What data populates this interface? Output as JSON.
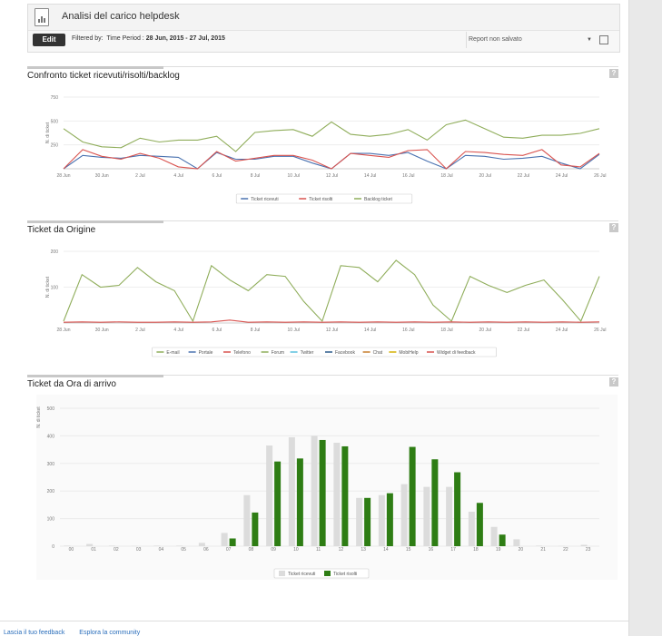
{
  "header": {
    "title": "Analisi del carico helpdesk",
    "edit_label": "Edit",
    "filter_prefix": "Filtered by:",
    "filter_field": "Time Period :",
    "filter_value": "28 Jun, 2015 - 27 Jul, 2015",
    "report_select": "Report non salvato"
  },
  "footer": {
    "feedback": "Lascia il tuo feedback",
    "community": "Esplora la community"
  },
  "colors": {
    "blue": "#4a72b0",
    "red": "#d9534f",
    "green": "#8fad5a",
    "gray_bar": "#dcdcdc",
    "dark_green": "#2e7d14"
  },
  "chart_data": [
    {
      "type": "line",
      "title": "Confronto ticket ricevuti/risolti/backlog",
      "ylabel": "N. di ticket",
      "ylim": [
        0,
        750
      ],
      "yticks": [
        250,
        500,
        750
      ],
      "x_ticks": [
        "28 Jun",
        "30 Jun",
        "2 Jul",
        "4 Jul",
        "6 Jul",
        "8 Jul",
        "10 Jul",
        "12 Jul",
        "14 Jul",
        "16 Jul",
        "18 Jul",
        "20 Jul",
        "22 Jul",
        "24 Jul",
        "26 Jul"
      ],
      "legend": [
        "Ticket ricevuti",
        "Ticket risolti",
        "Backlog ticket"
      ],
      "series": [
        {
          "name": "Ticket ricevuti",
          "color": "#4a72b0",
          "values": [
            0,
            140,
            120,
            110,
            140,
            130,
            120,
            0,
            170,
            100,
            100,
            130,
            130,
            60,
            0,
            160,
            160,
            140,
            170,
            80,
            0,
            140,
            130,
            100,
            110,
            130,
            60,
            0,
            150
          ]
        },
        {
          "name": "Ticket risolti",
          "color": "#d9534f",
          "values": [
            0,
            200,
            130,
            100,
            160,
            110,
            20,
            0,
            180,
            80,
            110,
            140,
            140,
            90,
            0,
            160,
            140,
            120,
            190,
            200,
            0,
            180,
            170,
            150,
            140,
            200,
            40,
            20,
            160
          ]
        },
        {
          "name": "Backlog ticket",
          "color": "#8fad5a",
          "values": [
            420,
            280,
            230,
            220,
            320,
            280,
            300,
            300,
            340,
            180,
            380,
            400,
            410,
            340,
            490,
            360,
            340,
            360,
            410,
            300,
            460,
            510,
            420,
            330,
            320,
            350,
            350,
            370,
            420
          ]
        }
      ]
    },
    {
      "type": "line",
      "title": "Ticket da Origine",
      "ylabel": "N. di ticket",
      "ylim": [
        0,
        200
      ],
      "yticks": [
        100,
        200
      ],
      "x_ticks": [
        "28 Jun",
        "30 Jun",
        "2 Jul",
        "4 Jul",
        "6 Jul",
        "8 Jul",
        "10 Jul",
        "12 Jul",
        "14 Jul",
        "16 Jul",
        "18 Jul",
        "20 Jul",
        "22 Jul",
        "24 Jul",
        "26 Jul"
      ],
      "legend": [
        "E-mail",
        "Portale",
        "Telefono",
        "Forum",
        "Twitter",
        "Facebook",
        "Chat",
        "MobiHelp",
        "Widget di feedback"
      ],
      "legend_colors": [
        "#8fad5a",
        "#4a72b0",
        "#d9534f",
        "#8fad5a",
        "#5bc0de",
        "#2a5a8a",
        "#c77d2e",
        "#d4b106",
        "#d9534f"
      ],
      "series": [
        {
          "name": "E-mail",
          "color": "#8fad5a",
          "values": [
            5,
            135,
            100,
            105,
            155,
            115,
            90,
            5,
            160,
            120,
            90,
            135,
            130,
            60,
            5,
            160,
            155,
            115,
            175,
            135,
            50,
            5,
            130,
            105,
            85,
            105,
            120,
            65,
            5,
            130
          ]
        },
        {
          "name": "Telefono",
          "color": "#d9534f",
          "values": [
            2,
            3,
            2,
            3,
            2,
            2,
            3,
            2,
            3,
            8,
            2,
            3,
            2,
            3,
            2,
            3,
            2,
            3,
            2,
            3,
            2,
            3,
            2,
            3,
            2,
            3,
            2,
            3,
            2,
            3
          ]
        }
      ]
    },
    {
      "type": "bar",
      "title": "Ticket da Ora di arrivo",
      "ylabel": "N. di ticket",
      "ylim": [
        0,
        500
      ],
      "yticks": [
        0,
        100,
        200,
        300,
        400,
        500
      ],
      "categories": [
        "00",
        "01",
        "02",
        "03",
        "04",
        "05",
        "06",
        "07",
        "08",
        "09",
        "10",
        "11",
        "12",
        "13",
        "14",
        "15",
        "16",
        "17",
        "18",
        "19",
        "20",
        "21",
        "22",
        "23"
      ],
      "legend": [
        "Ticket ricevuti",
        "Ticket risolti"
      ],
      "series": [
        {
          "name": "Ticket ricevuti",
          "color": "#dcdcdc",
          "values": [
            2,
            8,
            2,
            1,
            2,
            2,
            12,
            48,
            185,
            365,
            395,
            400,
            375,
            175,
            185,
            225,
            215,
            215,
            125,
            70,
            25,
            2,
            1,
            5
          ]
        },
        {
          "name": "Ticket risolti",
          "color": "#2e7d14",
          "values": [
            0,
            0,
            0,
            0,
            0,
            0,
            0,
            28,
            122,
            307,
            318,
            385,
            362,
            175,
            192,
            360,
            315,
            268,
            157,
            42,
            0,
            0,
            0,
            0
          ]
        }
      ]
    }
  ]
}
